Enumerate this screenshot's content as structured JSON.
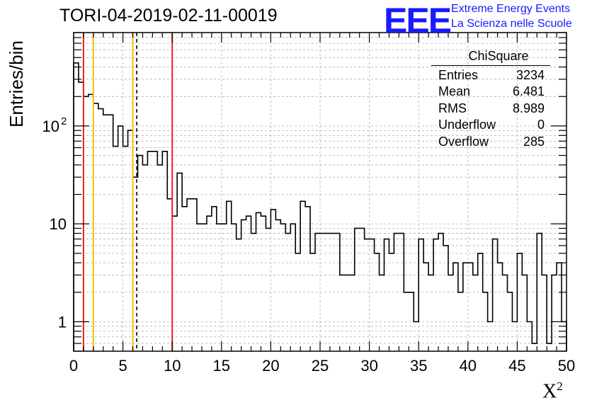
{
  "title": "TORI-04-2019-02-11-00019",
  "logo": {
    "mark": "EEE",
    "line1": "Extreme Energy Events",
    "line2": "La Scienza nelle Scuole",
    "color": "#1a1aff"
  },
  "stats_box": {
    "title": "ChiSquare",
    "rows": [
      {
        "label": "Entries",
        "value": "3234"
      },
      {
        "label": "Mean",
        "value": "6.481"
      },
      {
        "label": "RMS",
        "value": "8.989"
      },
      {
        "label": "Underflow",
        "value": "0"
      },
      {
        "label": "Overflow",
        "value": "285"
      }
    ]
  },
  "chart_data": {
    "type": "histogram",
    "xlabel": "X",
    "xlabel_sup": "2",
    "ylabel": "Entries/bin",
    "xlim": [
      0,
      50
    ],
    "ylim": [
      0.5,
      900
    ],
    "log_y": true,
    "grid": true,
    "bin_width": 0.5,
    "x_ticks": [
      "0",
      "5",
      "10",
      "15",
      "20",
      "25",
      "30",
      "35",
      "40",
      "45",
      "50"
    ],
    "y_ticks": [
      {
        "value": 1,
        "label": "1"
      },
      {
        "value": 10,
        "label": "10"
      },
      {
        "value": 100,
        "label": "10",
        "sup": "2"
      }
    ],
    "values": [
      440,
      280,
      200,
      210,
      170,
      150,
      130,
      130,
      62,
      100,
      62,
      90,
      30,
      50,
      40,
      55,
      55,
      40,
      55,
      18,
      12,
      33,
      15,
      18,
      18,
      10,
      10,
      12,
      15,
      10,
      10,
      17,
      10,
      7,
      11,
      12,
      8,
      13,
      12,
      9,
      14,
      11,
      10,
      8,
      10,
      5,
      17,
      15,
      5,
      8,
      8,
      8,
      8,
      8,
      3,
      3,
      3,
      9,
      9,
      7,
      7,
      5,
      3,
      7,
      5,
      8,
      8,
      2,
      2,
      1,
      7,
      4,
      3,
      7,
      8,
      6,
      3,
      4,
      2,
      4,
      4,
      3,
      5,
      2,
      1,
      7,
      4,
      3,
      2,
      1,
      5,
      3,
      1,
      0.6,
      8,
      3,
      0.6,
      3,
      4,
      1
    ],
    "vlines": [
      {
        "x": 1,
        "color": "#e8241a",
        "style": "solid"
      },
      {
        "x": 2,
        "color": "#f2c200",
        "style": "solid"
      },
      {
        "x": 6,
        "color": "#f2c200",
        "style": "solid"
      },
      {
        "x": 6.4,
        "color": "#000000",
        "style": "dashed"
      },
      {
        "x": 10,
        "color": "#e8241a",
        "style": "solid"
      }
    ]
  }
}
